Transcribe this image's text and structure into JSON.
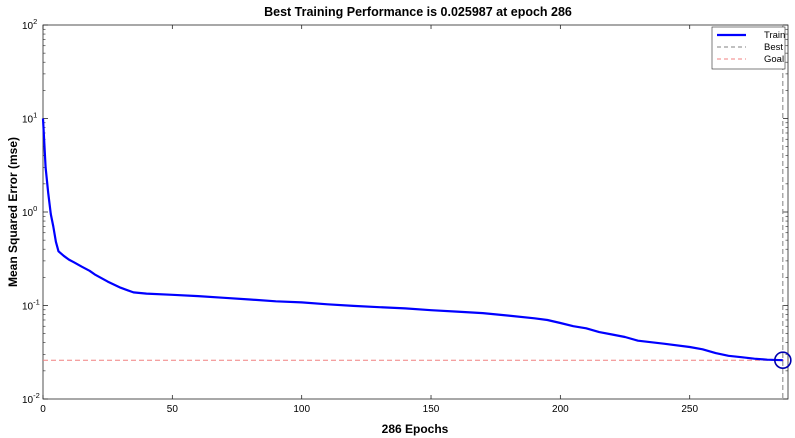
{
  "chart_data": {
    "type": "line",
    "title": "Best Training Performance is 0.025987 at epoch 286",
    "xlabel": "286 Epochs",
    "ylabel": "Mean Squared Error  (mse)",
    "xlim": [
      0,
      288
    ],
    "ylim": [
      0.01,
      100
    ],
    "yscale": "log",
    "xticks": [
      "0",
      "50",
      "100",
      "150",
      "200",
      "250"
    ],
    "xtick_values": [
      0,
      50,
      100,
      150,
      200,
      250
    ],
    "yticks": [
      {
        "base": "10",
        "exp": "-2",
        "value": 0.01
      },
      {
        "base": "10",
        "exp": "-1",
        "value": 0.1
      },
      {
        "base": "10",
        "exp": "0",
        "value": 1
      },
      {
        "base": "10",
        "exp": "1",
        "value": 10
      },
      {
        "base": "10",
        "exp": "2",
        "value": 100
      }
    ],
    "grid": false,
    "legend_position": "top-right",
    "series": [
      {
        "name": "Train",
        "color": "#0000ff",
        "style": "solid",
        "x": [
          0,
          1,
          2,
          3,
          4,
          5,
          6,
          8,
          10,
          12,
          15,
          18,
          20,
          25,
          30,
          35,
          40,
          50,
          60,
          70,
          80,
          90,
          100,
          110,
          120,
          130,
          140,
          150,
          160,
          170,
          180,
          190,
          195,
          200,
          205,
          210,
          215,
          220,
          225,
          230,
          240,
          250,
          255,
          260,
          265,
          270,
          275,
          280,
          286
        ],
        "y": [
          10,
          3.0,
          1.6,
          0.95,
          0.7,
          0.48,
          0.38,
          0.34,
          0.31,
          0.29,
          0.26,
          0.235,
          0.215,
          0.18,
          0.155,
          0.138,
          0.134,
          0.13,
          0.126,
          0.121,
          0.116,
          0.111,
          0.108,
          0.103,
          0.099,
          0.096,
          0.093,
          0.089,
          0.086,
          0.083,
          0.078,
          0.073,
          0.07,
          0.065,
          0.06,
          0.057,
          0.052,
          0.049,
          0.046,
          0.042,
          0.039,
          0.036,
          0.034,
          0.031,
          0.029,
          0.028,
          0.027,
          0.0263,
          0.025987
        ]
      },
      {
        "name": "Best",
        "color": "#808080",
        "style": "dashed",
        "x_value": 286
      },
      {
        "name": "Goal",
        "color": "#f08080",
        "style": "dashed",
        "y_value": 0.025987
      }
    ],
    "best_point": {
      "x": 286,
      "y": 0.025987,
      "color": "#0000b0"
    }
  }
}
